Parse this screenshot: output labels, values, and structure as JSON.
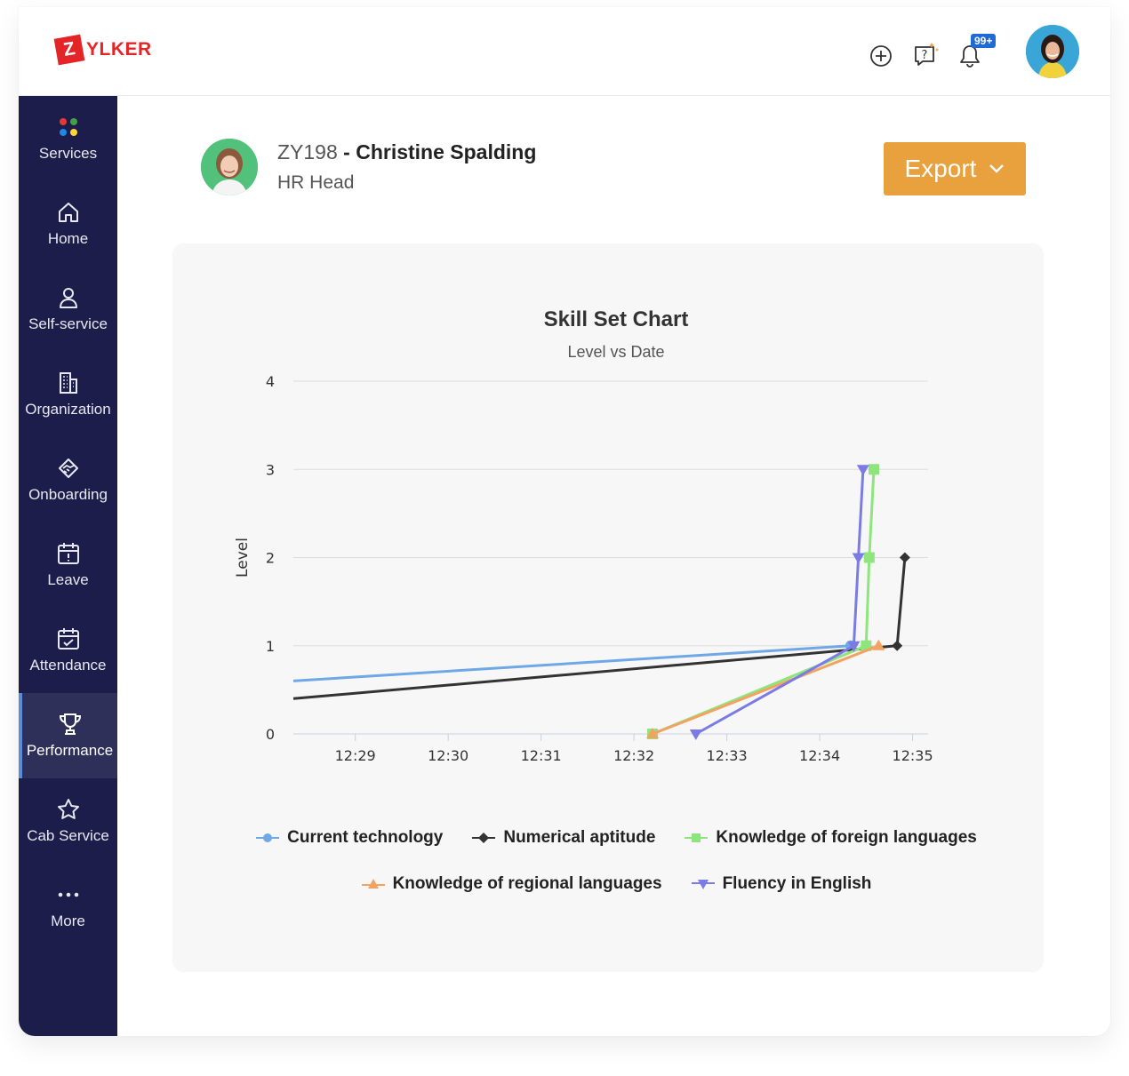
{
  "app": {
    "logo_letter": "Z",
    "logo_text": "YLKER",
    "brand_color": "#e42527"
  },
  "topbar": {
    "notifications_badge": "99+"
  },
  "sidebar": {
    "items": [
      {
        "label": "Services",
        "icon": "services-icon"
      },
      {
        "label": "Home",
        "icon": "home-icon"
      },
      {
        "label": "Self-service",
        "icon": "user-icon"
      },
      {
        "label": "Organization",
        "icon": "building-icon"
      },
      {
        "label": "Onboarding",
        "icon": "handshake-icon"
      },
      {
        "label": "Leave",
        "icon": "calendar-alert-icon"
      },
      {
        "label": "Attendance",
        "icon": "calendar-check-icon"
      },
      {
        "label": "Performance",
        "icon": "trophy-icon",
        "active": true
      },
      {
        "label": "Cab Service",
        "icon": "star-icon"
      },
      {
        "label": "More",
        "icon": "more-icon"
      }
    ]
  },
  "employee": {
    "id": "ZY198",
    "separator": " - ",
    "name": "Christine Spalding",
    "role": "HR Head"
  },
  "export": {
    "label": "Export"
  },
  "chart_data": {
    "type": "line",
    "title": "Skill Set Chart",
    "subtitle": "Level vs Date",
    "ylabel": "Level",
    "xlabel": "",
    "ylim": [
      0,
      4
    ],
    "yticks": [
      0,
      1,
      2,
      3,
      4
    ],
    "xlim": [
      "12:28:20",
      "12:35:10"
    ],
    "xticks": [
      "12:29",
      "12:30",
      "12:31",
      "12:32",
      "12:33",
      "12:34",
      "12:35"
    ],
    "grid": true,
    "legend_position": "bottom",
    "series": [
      {
        "name": "Current technology",
        "color": "#6fa8e6",
        "marker": "circle",
        "points": [
          [
            "12:28:20",
            0.6
          ],
          [
            "12:34:20",
            1
          ]
        ]
      },
      {
        "name": "Numerical aptitude",
        "color": "#333333",
        "marker": "diamond",
        "points": [
          [
            "12:28:20",
            0.4
          ],
          [
            "12:34:50",
            1
          ],
          [
            "12:34:55",
            2
          ]
        ]
      },
      {
        "name": "Knowledge of foreign languages",
        "color": "#8ee57d",
        "marker": "square",
        "points": [
          [
            "12:32:12",
            0
          ],
          [
            "12:34:30",
            1
          ],
          [
            "12:34:32",
            2
          ],
          [
            "12:34:35",
            3
          ]
        ]
      },
      {
        "name": "Knowledge of regional languages",
        "color": "#f4a261",
        "marker": "triangle",
        "points": [
          [
            "12:32:12",
            0
          ],
          [
            "12:34:38",
            1
          ]
        ]
      },
      {
        "name": "Fluency in English",
        "color": "#7b7be6",
        "marker": "triangle-down",
        "points": [
          [
            "12:32:40",
            0
          ],
          [
            "12:34:22",
            1
          ],
          [
            "12:34:25",
            2
          ],
          [
            "12:34:28",
            3
          ]
        ]
      }
    ]
  }
}
